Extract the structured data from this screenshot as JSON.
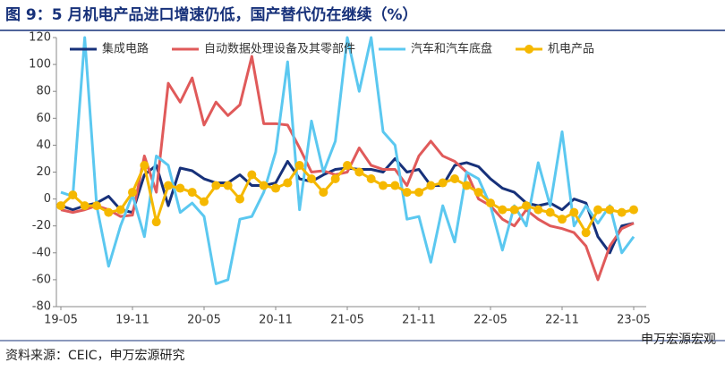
{
  "chart_data": {
    "type": "line",
    "title": "图 9：5 月机电产品进口增速仍低，国产替代仍在继续（%）",
    "source": "资料来源：CEIC，申万宏源研究",
    "watermark": "申万宏源宏观",
    "categories": [
      "19-05",
      null,
      null,
      null,
      null,
      null,
      "19-11",
      null,
      null,
      null,
      null,
      null,
      "20-05",
      null,
      null,
      null,
      null,
      null,
      "20-11",
      null,
      null,
      null,
      null,
      null,
      "21-05",
      null,
      null,
      null,
      null,
      null,
      "21-11",
      null,
      null,
      null,
      null,
      null,
      "22-05",
      null,
      null,
      null,
      null,
      null,
      "22-11",
      null,
      null,
      null,
      null,
      null,
      "23-05"
    ],
    "ylim": [
      -80,
      120
    ],
    "yticks": [
      -80,
      -60,
      -40,
      -20,
      0,
      20,
      40,
      60,
      80,
      100,
      120
    ],
    "legend": "top",
    "series": [
      {
        "name": "集成电路",
        "color": "#17317a",
        "marker": false,
        "values": [
          -5,
          -8,
          -5,
          -3,
          2,
          -8,
          -10,
          18,
          25,
          -5,
          23,
          21,
          15,
          12,
          12,
          18,
          10,
          10,
          12,
          28,
          15,
          13,
          18,
          22,
          23,
          22,
          22,
          20,
          30,
          20,
          22,
          10,
          10,
          25,
          27,
          24,
          15,
          8,
          5,
          -3,
          -5,
          -3,
          -8,
          0,
          -3,
          -28,
          -40,
          -20,
          -18
        ]
      },
      {
        "name": "自动数据处理设备及其零部件",
        "color": "#e05a5a",
        "marker": false,
        "values": [
          -8,
          -10,
          -8,
          -5,
          -8,
          -13,
          -12,
          32,
          5,
          86,
          72,
          90,
          55,
          72,
          62,
          70,
          106,
          56,
          56,
          55,
          38,
          20,
          21,
          18,
          20,
          38,
          25,
          22,
          22,
          10,
          32,
          43,
          32,
          28,
          20,
          0,
          -5,
          -15,
          -20,
          -8,
          -15,
          -20,
          -22,
          -25,
          -35,
          -60,
          -35,
          -22,
          -18
        ]
      },
      {
        "name": "汽车和汽车底盘",
        "color": "#5bc8f0",
        "marker": false,
        "values": [
          5,
          2,
          120,
          -5,
          -50,
          -20,
          3,
          -28,
          32,
          25,
          -10,
          -3,
          -13,
          -63,
          -60,
          -15,
          -13,
          5,
          35,
          102,
          -8,
          58,
          20,
          43,
          120,
          80,
          120,
          50,
          40,
          -15,
          -13,
          -47,
          -5,
          -32,
          20,
          15,
          -5,
          -38,
          -5,
          -20,
          27,
          -5,
          50,
          -20,
          -5,
          -18,
          -5,
          -40,
          -28
        ]
      },
      {
        "name": "机电产品",
        "color": "#f5b800",
        "marker": true,
        "values": [
          -5,
          3,
          -5,
          -5,
          -10,
          -8,
          5,
          25,
          -17,
          10,
          8,
          5,
          -2,
          10,
          10,
          0,
          18,
          10,
          8,
          12,
          25,
          15,
          5,
          15,
          25,
          20,
          15,
          10,
          10,
          5,
          5,
          10,
          12,
          15,
          10,
          5,
          -3,
          -8,
          -8,
          -5,
          -8,
          -10,
          -15,
          -10,
          -25,
          -8,
          -8,
          -10,
          -8
        ]
      }
    ]
  }
}
